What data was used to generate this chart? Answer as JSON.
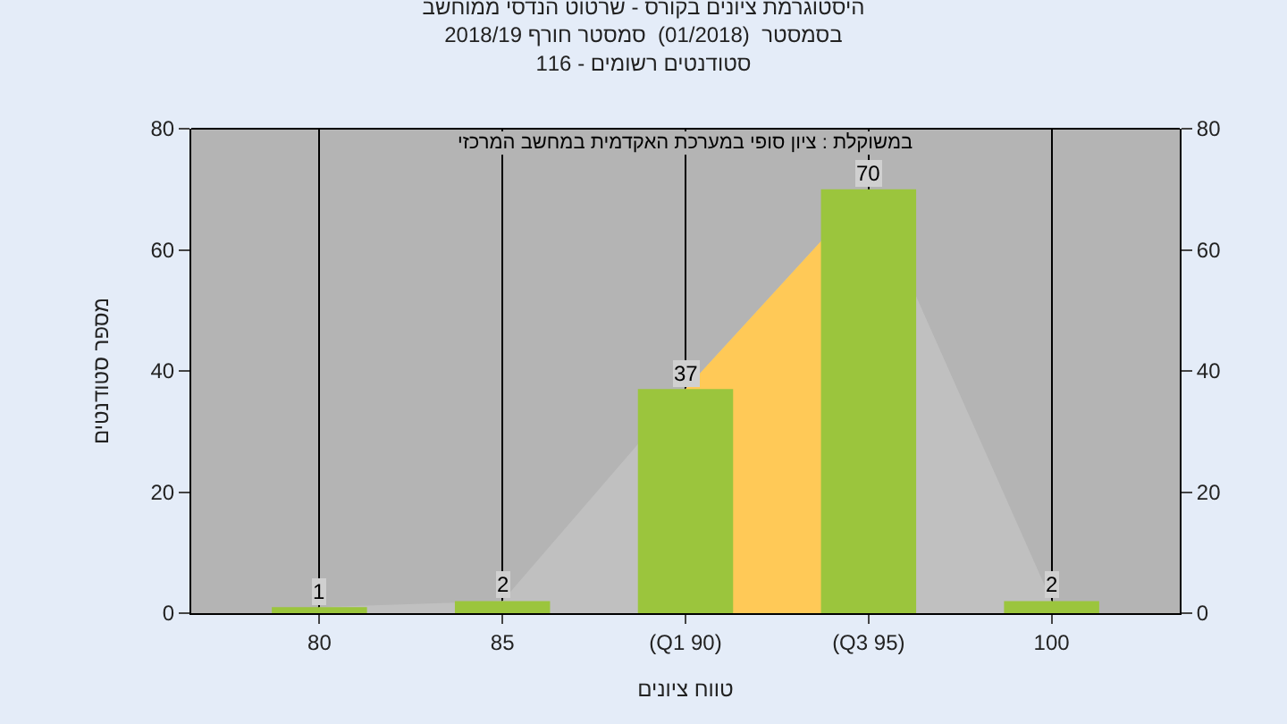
{
  "chart_data": {
    "type": "bar",
    "title": "היסטוגרמת ציונים בקורס - שרטוט הנדסי ממוחשב\nבסמסטר  (01/2018)  סמסטר חורף 2018/19\nסטודנטים רשומים - 116",
    "xlabel": "טווח ציונים",
    "ylabel": "מספר סטודנטים",
    "annotations": [
      "במשוקלת : ציון סופי במערכת האקדמית במחשב המרכזי"
    ],
    "categories": [
      "80",
      "85",
      "(Q1 90)",
      "(Q3 95)",
      "100"
    ],
    "series": [
      {
        "type": "area",
        "color": "#c0c0c0",
        "values": [
          1,
          2,
          37,
          70,
          2
        ]
      },
      {
        "type": "area",
        "color": "#ffc957",
        "values": [
          null,
          null,
          37,
          70,
          null
        ]
      },
      {
        "color": "#9bc53d",
        "values": [
          1,
          2,
          37,
          70,
          2
        ],
        "data_labels": true
      }
    ],
    "ylim": [
      0,
      80
    ],
    "yticks": [
      0,
      20,
      40,
      60,
      80
    ],
    "y2lim": [
      0,
      80
    ],
    "y2ticks": [
      0,
      20,
      40,
      60,
      80
    ],
    "grid": "x"
  }
}
